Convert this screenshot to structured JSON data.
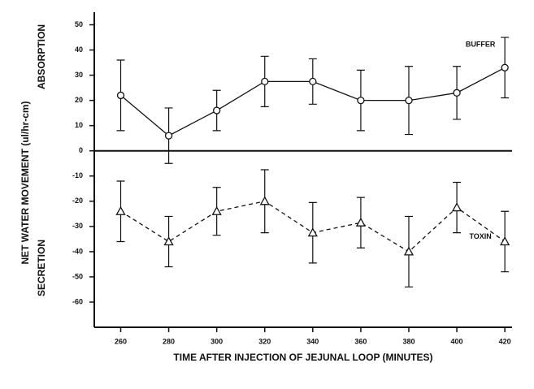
{
  "chart_data": {
    "type": "line",
    "x_label": "TIME AFTER INJECTION OF JEJUNAL LOOP (MINUTES)",
    "y_label": "NET WATER MOVEMENT (ul/hr-cm)",
    "y_label_top": "ABSORPTION",
    "y_label_bottom": "SECRETION",
    "x": [
      260,
      280,
      300,
      320,
      340,
      360,
      380,
      400,
      420
    ],
    "series": [
      {
        "name": "BUFFER",
        "color": "#111111",
        "marker": "circle",
        "dashed": false,
        "values": [
          22,
          6,
          16,
          27.5,
          27.5,
          20,
          20,
          23,
          33
        ],
        "errors": [
          14,
          11,
          8,
          10,
          9,
          12,
          13.5,
          10.5,
          12
        ]
      },
      {
        "name": "TOXIN",
        "color": "#111111",
        "marker": "triangle",
        "dashed": true,
        "values": [
          -24,
          -36,
          -24,
          -20,
          -32.5,
          -28.5,
          -40,
          -22.5,
          -36
        ],
        "errors": [
          12,
          10,
          9.5,
          12.5,
          12,
          10,
          14,
          10,
          12
        ]
      }
    ],
    "xlim": [
      249,
      423
    ],
    "ylim": [
      -70,
      55
    ],
    "xticks": [
      260,
      280,
      300,
      320,
      340,
      360,
      380,
      400,
      420
    ],
    "yticks": [
      -60,
      -50,
      -40,
      -30,
      -20,
      -10,
      0,
      10,
      20,
      30,
      40,
      50
    ],
    "zero_line": true,
    "grid": false
  }
}
